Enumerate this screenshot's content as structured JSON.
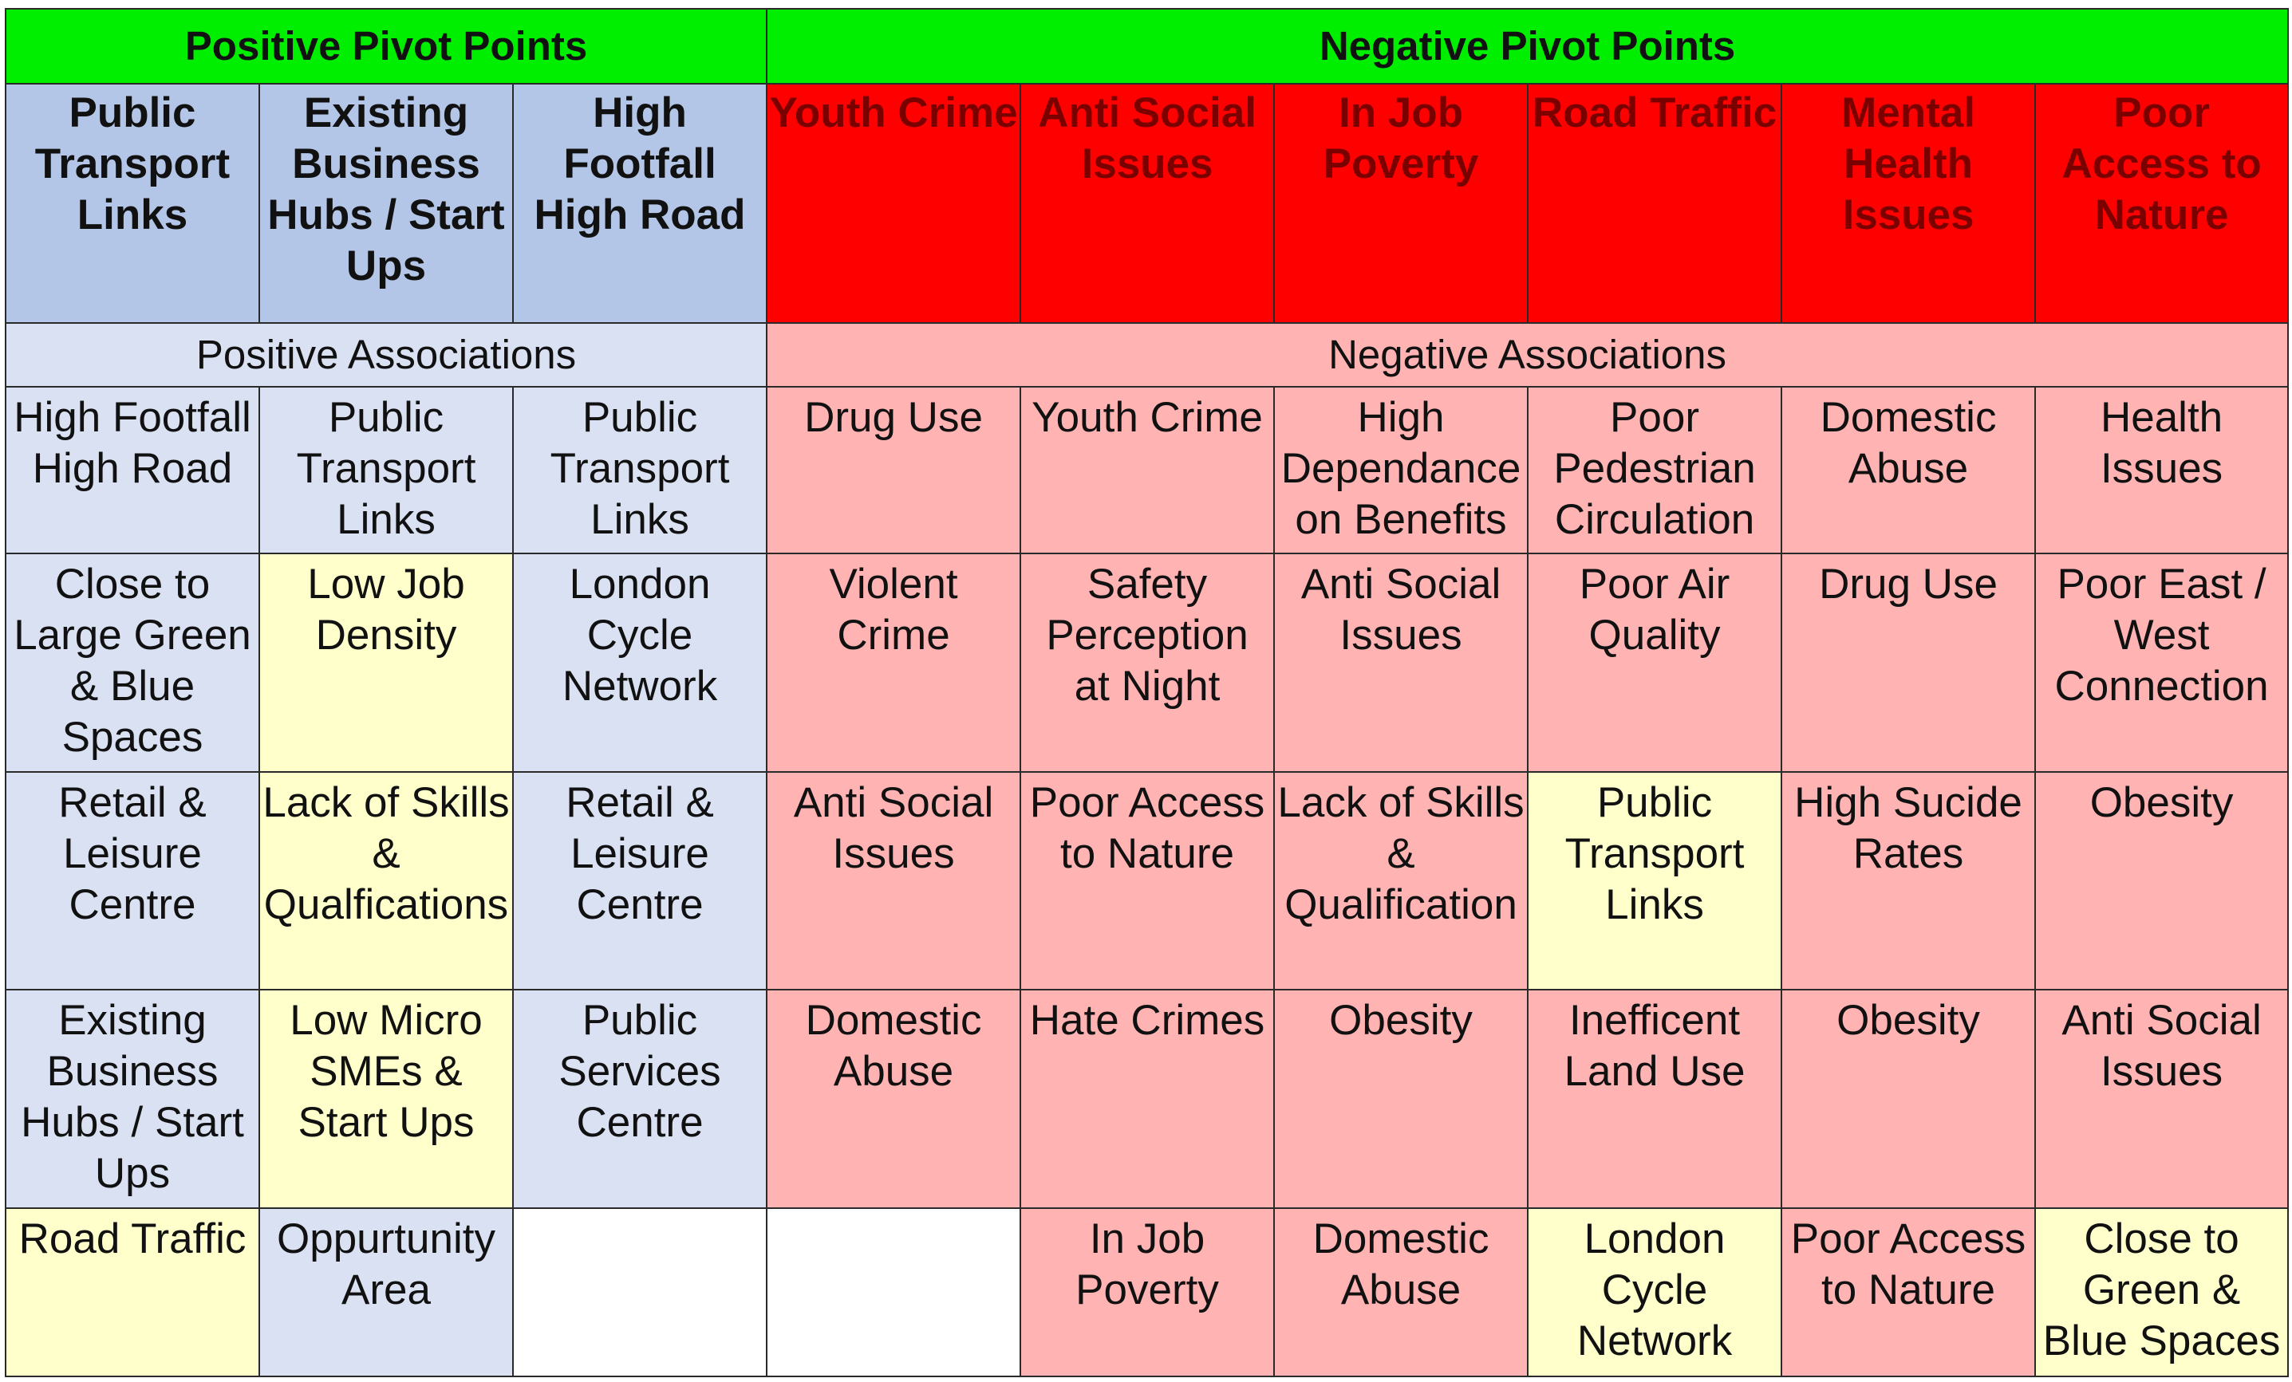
{
  "titles": {
    "positive": "Positive Pivot Points",
    "negative": "Negative Pivot Points"
  },
  "pivot_headers": {
    "positive": [
      "Public Transport Links",
      "Existing Business Hubs / Start Ups",
      "High Footfall High Road"
    ],
    "negative": [
      "Youth Crime",
      "Anti Social Issues",
      "In Job Poverty",
      "Road Traffic",
      "Mental Health Issues",
      "Poor Access to Nature"
    ]
  },
  "associations": {
    "positive": "Positive Associations",
    "negative": "Negative Associations"
  },
  "rows": [
    [
      "High Footfall High Road",
      "Public Transport Links",
      "Public Transport Links",
      "Drug Use",
      "Youth Crime",
      "High Dependance on Benefits",
      "Poor Pedestrian Circulation",
      "Domestic Abuse",
      "Health Issues"
    ],
    [
      "Close to Large Green & Blue Spaces",
      "Low Job Density",
      "London Cycle Network",
      "Violent Crime",
      "Safety Perception at Night",
      "Anti Social Issues",
      "Poor Air Quality",
      "Drug Use",
      "Poor East / West Connection"
    ],
    [
      "Retail & Leisure Centre",
      "Lack of Skills & Qualfications",
      "Retail & Leisure Centre",
      "Anti Social Issues",
      "Poor Access to Nature",
      "Lack of Skills & Qualification",
      "Public Transport Links",
      "High Sucide Rates",
      "Obesity"
    ],
    [
      "Existing Business Hubs / Start Ups",
      "Low Micro SMEs & Start Ups",
      "Public Services Centre",
      "Domestic Abuse",
      "Hate Crimes",
      "Obesity",
      "Inefficent Land Use",
      "Obesity",
      "Anti Social Issues"
    ],
    [
      "Road Traffic",
      "Oppurtunity Area",
      "",
      "",
      "In Job Poverty",
      "Domestic Abuse",
      "London Cycle Network",
      "Poor Access to Nature",
      "Close to Green & Blue Spaces"
    ]
  ],
  "colors": {
    "title_bar": "#00ee00",
    "positive_pivot": "#b4c6e7",
    "negative_pivot": "#ff0000",
    "positive_assoc": "#d9e1f2",
    "negative_assoc": "#ffb3b3",
    "highlight": "#ffffcc",
    "empty": "#ffffff"
  }
}
